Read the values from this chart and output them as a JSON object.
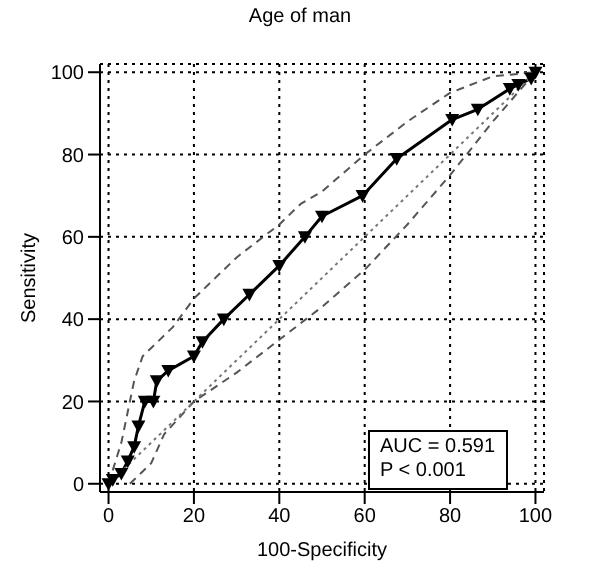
{
  "chart_data": {
    "type": "line",
    "title": "Age of man",
    "xlabel": "100-Specificity",
    "ylabel": "Sensitivity",
    "xlim": [
      -2,
      102
    ],
    "ylim": [
      -2,
      102
    ],
    "xticks": [
      0,
      20,
      40,
      60,
      80,
      100
    ],
    "yticks": [
      0,
      20,
      40,
      60,
      80,
      100
    ],
    "grid": true,
    "series": [
      {
        "color": "#000000",
        "marker": "triangle",
        "line_style": "solid",
        "x": [
          0,
          1,
          3,
          4.5,
          6,
          7,
          8.5,
          10.5,
          11.3,
          14,
          20,
          22,
          27,
          33,
          40,
          46,
          50,
          59.5,
          67.5,
          80.5,
          86.5,
          94,
          96,
          99,
          100
        ],
        "values": [
          0,
          1,
          2.5,
          5.5,
          9,
          14,
          20,
          20,
          25,
          27.5,
          31,
          34.5,
          40,
          46,
          53,
          60,
          65,
          70,
          79,
          88.5,
          91,
          96,
          97,
          98.5,
          100
        ]
      },
      {
        "color": "#555555",
        "marker": "none",
        "line_style": "dashed",
        "x": [
          0,
          3,
          6,
          8,
          10,
          15,
          20,
          30,
          40,
          45,
          50,
          60,
          70,
          80,
          90,
          100
        ],
        "values": [
          0,
          10,
          25,
          31,
          33,
          38,
          45,
          55,
          63,
          68,
          71,
          80,
          88,
          95,
          99,
          100
        ]
      },
      {
        "color": "#555555",
        "marker": "none",
        "line_style": "dashed",
        "x": [
          5,
          8,
          10,
          13,
          20,
          30,
          40,
          50,
          60,
          70,
          80,
          90,
          100
        ],
        "values": [
          0,
          3,
          5,
          12,
          20,
          27,
          35,
          43,
          52,
          63,
          75,
          88,
          100
        ]
      },
      {
        "color": "#777777",
        "marker": "none",
        "line_style": "dotted",
        "x": [
          0,
          100
        ],
        "values": [
          0,
          100
        ]
      }
    ],
    "annotations": [
      "AUC = 0.591",
      "P < 0.001"
    ]
  }
}
